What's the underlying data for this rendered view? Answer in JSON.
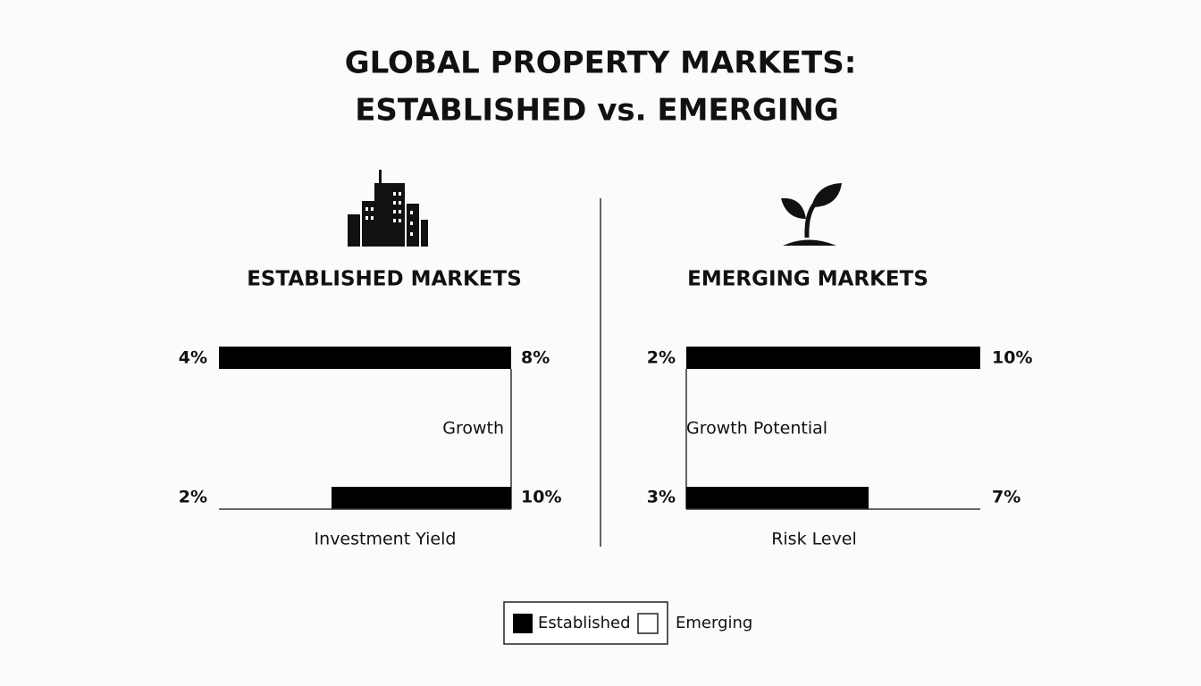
{
  "header": {
    "title_line1": "GLOBAL PROPERTY MARKETS:",
    "title_line2": "ESTABLISHED vs. EMERGING"
  },
  "panels": [
    {
      "heading": "ESTABLISHED MARKETS",
      "top_bar": {
        "left": "4%",
        "right": "8%"
      },
      "middle_label": "Growth",
      "bottom_bar": {
        "left": "2%",
        "right": "10%"
      },
      "bottom_label": "Investment Yield"
    },
    {
      "heading": "EMERGING MARKETS",
      "top_bar": {
        "left": "2%",
        "right": "10%"
      },
      "middle_label": "Growth Potential",
      "bottom_bar": {
        "left": "3%",
        "right": "7%"
      },
      "bottom_label": "Risk Level"
    }
  ],
  "legend": {
    "items": [
      "Established",
      "Emerging"
    ]
  }
}
